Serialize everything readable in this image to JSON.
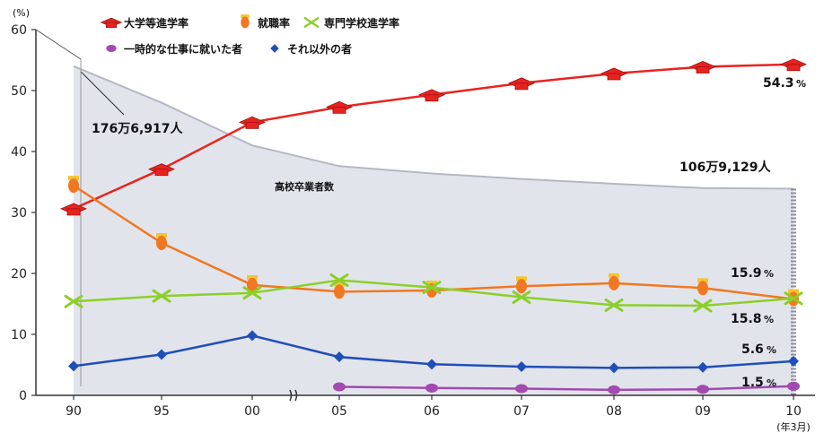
{
  "chart_data": {
    "type": "line",
    "y_unit": "(%)",
    "x_unit": "(年3月)",
    "categories": [
      "90",
      "95",
      "00",
      "05",
      "06",
      "07",
      "08",
      "09",
      "10"
    ],
    "ylim": [
      0,
      60
    ],
    "yticks": [
      0,
      10,
      20,
      30,
      40,
      50,
      60
    ],
    "series": [
      {
        "name": "大学等進学率",
        "color": "#e8231f",
        "marker": "mortarboard",
        "values": [
          30.6,
          37.1,
          44.8,
          47.3,
          49.3,
          51.2,
          52.8,
          53.9,
          54.3
        ]
      },
      {
        "name": "就職率",
        "color": "#f07820",
        "marker": "ribbon",
        "values": [
          34.4,
          25.0,
          18.1,
          17.0,
          17.2,
          17.9,
          18.4,
          17.6,
          15.8
        ]
      },
      {
        "name": "専門学校進学率",
        "color": "#8ccf2a",
        "marker": "scissors",
        "values": [
          15.4,
          16.3,
          16.8,
          18.9,
          17.7,
          16.1,
          14.8,
          14.7,
          15.9
        ]
      },
      {
        "name": "一時的な仕事に就いた者",
        "color": "#a24ab0",
        "marker": "circle",
        "values": [
          null,
          null,
          null,
          1.4,
          1.2,
          1.1,
          0.9,
          1.0,
          1.5
        ]
      },
      {
        "name": "それ以外の者",
        "color": "#1f4fb8",
        "marker": "diamond",
        "values": [
          4.8,
          6.7,
          9.8,
          6.3,
          5.1,
          4.7,
          4.5,
          4.6,
          5.6
        ]
      }
    ],
    "area": {
      "name": "高校卒業者数",
      "start_label": "176万6,917人",
      "end_label": "106万9,129人",
      "values": [
        54.0,
        48.0,
        41.0,
        37.6,
        36.4,
        35.5,
        34.7,
        34.0,
        33.9
      ]
    },
    "end_labels": {
      "大学等進学率": "54.3",
      "専門学校進学率": "15.9",
      "就職率": "15.8",
      "それ以外の者": "5.6",
      "一時的な仕事に就いた者": "1.5"
    },
    "end_label_unit": "%"
  }
}
